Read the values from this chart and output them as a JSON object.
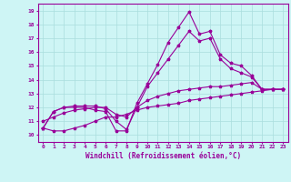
{
  "xlabel": "Windchill (Refroidissement éolien,°C)",
  "bg_color": "#cef5f5",
  "grid_color": "#aadddd",
  "line_color": "#990099",
  "x_ticks": [
    0,
    1,
    2,
    3,
    4,
    5,
    6,
    7,
    8,
    9,
    10,
    11,
    12,
    13,
    14,
    15,
    16,
    17,
    18,
    19,
    20,
    21,
    22,
    23
  ],
  "y_ticks": [
    10,
    11,
    12,
    13,
    14,
    15,
    16,
    17,
    18,
    19
  ],
  "ylim": [
    9.5,
    19.5
  ],
  "xlim": [
    -0.5,
    23.5
  ],
  "series": [
    [
      10.5,
      11.7,
      12.0,
      12.0,
      12.0,
      11.8,
      11.7,
      10.3,
      10.3,
      12.3,
      13.7,
      15.1,
      16.7,
      17.8,
      18.9,
      17.3,
      17.5,
      15.8,
      15.2,
      15.0,
      14.3,
      13.3,
      13.3,
      13.3
    ],
    [
      10.5,
      10.3,
      10.3,
      10.5,
      10.7,
      11.0,
      11.3,
      11.3,
      11.5,
      11.8,
      12.0,
      12.1,
      12.2,
      12.3,
      12.5,
      12.6,
      12.7,
      12.8,
      12.9,
      13.0,
      13.1,
      13.2,
      13.3,
      13.3
    ],
    [
      11.0,
      11.3,
      11.6,
      11.8,
      11.9,
      12.0,
      12.0,
      11.5,
      11.3,
      12.0,
      12.5,
      12.8,
      13.0,
      13.2,
      13.3,
      13.4,
      13.5,
      13.5,
      13.6,
      13.7,
      13.8,
      13.3,
      13.3,
      13.3
    ],
    [
      10.5,
      11.7,
      12.0,
      12.1,
      12.1,
      12.1,
      11.9,
      11.0,
      10.4,
      12.0,
      13.5,
      14.5,
      15.5,
      16.5,
      17.5,
      16.8,
      17.0,
      15.5,
      14.8,
      14.5,
      14.2,
      13.3,
      13.3,
      13.3
    ]
  ]
}
